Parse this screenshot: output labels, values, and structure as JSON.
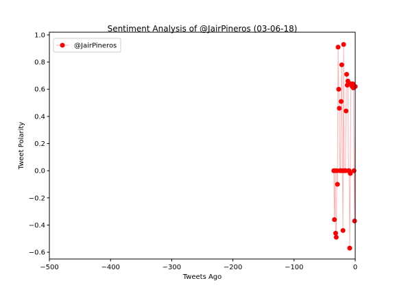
{
  "chart_data": {
    "type": "line",
    "title": "Sentiment Analysis of @JairPineros (03-06-18)",
    "xlabel": "Tweets Ago",
    "ylabel": "Tweet Polarity",
    "xlim": [
      -500,
      0
    ],
    "ylim": [
      -0.65,
      1.02
    ],
    "xticks": [
      -500,
      -400,
      -300,
      -200,
      -100,
      0
    ],
    "xtick_labels": [
      "−500",
      "−400",
      "−300",
      "−200",
      "−100",
      "0"
    ],
    "yticks": [
      -0.6,
      -0.4,
      -0.2,
      0.0,
      0.2,
      0.4,
      0.6,
      0.8,
      1.0
    ],
    "ytick_labels": [
      "−0.6",
      "−0.4",
      "−0.2",
      "0.0",
      "0.2",
      "0.4",
      "0.6",
      "0.8",
      "1.0"
    ],
    "grid": false,
    "legend_position": "top-left",
    "series": [
      {
        "name": "@JairPineros",
        "color": "#ff0000",
        "marker": "circle",
        "x": [
          -35,
          -34,
          -33,
          -32,
          -31,
          -30,
          -29,
          -28,
          -27,
          -26,
          -25,
          -24,
          -23,
          -22,
          -21,
          -20,
          -19,
          -18,
          -17,
          -16,
          -15,
          -14,
          -13,
          -12,
          -11,
          -10,
          -9,
          -8,
          -7,
          -6,
          -5,
          -4,
          -3,
          -2,
          -1,
          0
        ],
        "y": [
          0.0,
          -0.36,
          0.0,
          -0.46,
          -0.49,
          0.0,
          -0.1,
          0.91,
          0.6,
          0.46,
          0.0,
          0.0,
          0.51,
          0.78,
          0.0,
          -0.44,
          0.93,
          0.0,
          0.0,
          0.0,
          0.44,
          0.71,
          0.63,
          0.66,
          0.0,
          0.0,
          -0.57,
          -0.02,
          0.64,
          0.63,
          0.62,
          0.64,
          0.61,
          0.0,
          -0.37,
          0.62
        ]
      }
    ]
  }
}
